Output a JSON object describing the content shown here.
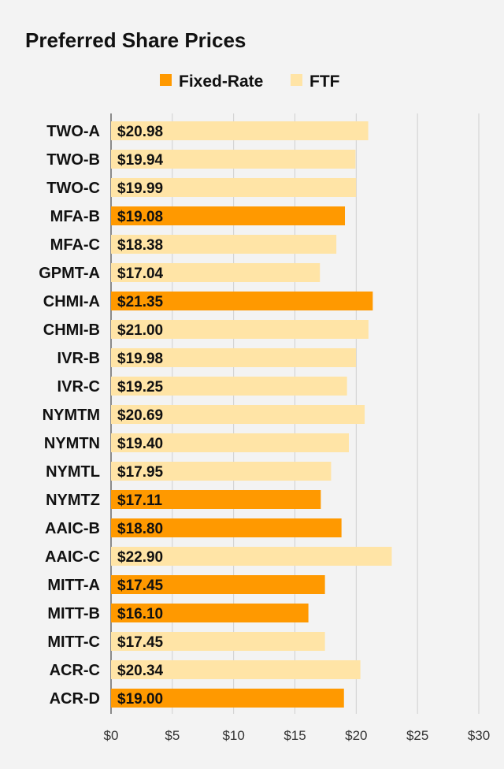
{
  "chart_data": {
    "type": "bar",
    "orientation": "horizontal",
    "title": "Preferred Share Prices",
    "legend": [
      {
        "name": "Fixed-Rate",
        "color": "#ff9900"
      },
      {
        "name": "FTF",
        "color": "#ffe4a6"
      }
    ],
    "legend_placement": "top-center",
    "categories": [
      "TWO-A",
      "TWO-B",
      "TWO-C",
      "MFA-B",
      "MFA-C",
      "GPMT-A",
      "CHMI-A",
      "CHMI-B",
      "IVR-B",
      "IVR-C",
      "NYMTM",
      "NYMTN",
      "NYMTL",
      "NYMTZ",
      "AAIC-B",
      "AAIC-C",
      "MITT-A",
      "MITT-B",
      "MITT-C",
      "ACR-C",
      "ACR-D"
    ],
    "values": [
      20.98,
      19.94,
      19.99,
      19.08,
      18.38,
      17.04,
      21.35,
      21.0,
      19.98,
      19.25,
      20.69,
      19.4,
      17.95,
      17.11,
      18.8,
      22.9,
      17.45,
      16.1,
      17.45,
      20.34,
      19.0
    ],
    "value_labels": [
      "$20.98",
      "$19.94",
      "$19.99",
      "$19.08",
      "$18.38",
      "$17.04",
      "$21.35",
      "$21.00",
      "$19.98",
      "$19.25",
      "$20.69",
      "$19.40",
      "$17.95",
      "$17.11",
      "$18.80",
      "$22.90",
      "$17.45",
      "$16.10",
      "$17.45",
      "$20.34",
      "$19.00"
    ],
    "series_type": [
      "FTF",
      "FTF",
      "FTF",
      "Fixed-Rate",
      "FTF",
      "FTF",
      "Fixed-Rate",
      "FTF",
      "FTF",
      "FTF",
      "FTF",
      "FTF",
      "FTF",
      "Fixed-Rate",
      "Fixed-Rate",
      "FTF",
      "Fixed-Rate",
      "Fixed-Rate",
      "FTF",
      "FTF",
      "Fixed-Rate"
    ],
    "xlim": [
      0,
      30
    ],
    "xticks": [
      0,
      5,
      10,
      15,
      20,
      25,
      30
    ],
    "xtick_labels": [
      "$0",
      "$5",
      "$10",
      "$15",
      "$20",
      "$25",
      "$30"
    ],
    "grid": true,
    "xlabel": "",
    "ylabel": ""
  }
}
